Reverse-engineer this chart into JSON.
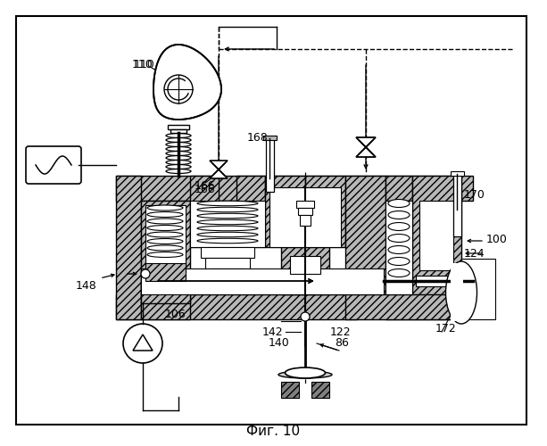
{
  "fig_label": "Фиг. 10",
  "bg": "#ffffff",
  "hatch_gray": "#b8b8b8",
  "dark_gray": "#808080",
  "line_color": "#000000"
}
